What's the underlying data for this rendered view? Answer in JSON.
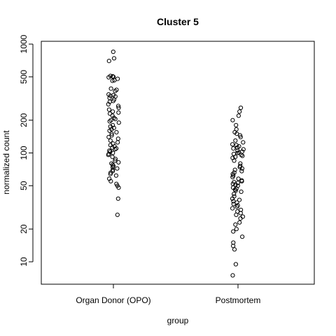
{
  "chart_data": {
    "type": "scatter",
    "title": "Cluster 5",
    "xlabel": "group",
    "ylabel": "normalized count",
    "y_scale": "log",
    "ylim": [
      7,
      1050
    ],
    "yticks": [
      10,
      20,
      50,
      100,
      200,
      500,
      1000
    ],
    "categories": [
      "Organ Donor (OPO)",
      "Postmortem"
    ],
    "grid": false,
    "legend": "none",
    "series": [
      {
        "category": "Organ Donor (OPO)",
        "values": [
          850,
          740,
          700,
          510,
          505,
          500,
          495,
          480,
          465,
          460,
          390,
          380,
          370,
          345,
          340,
          335,
          330,
          320,
          310,
          300,
          295,
          280,
          270,
          260,
          250,
          240,
          235,
          230,
          220,
          210,
          205,
          200,
          195,
          190,
          180,
          175,
          170,
          165,
          160,
          155,
          150,
          145,
          140,
          135,
          130,
          125,
          122,
          118,
          115,
          112,
          110,
          108,
          105,
          103,
          100,
          98,
          96,
          92,
          88,
          85,
          82,
          80,
          78,
          76,
          74,
          72,
          70,
          68,
          66,
          64,
          62,
          58,
          55,
          52,
          50,
          48,
          38,
          27
        ]
      },
      {
        "category": "Postmortem",
        "values": [
          260,
          240,
          220,
          200,
          180,
          165,
          155,
          150,
          145,
          140,
          130,
          125,
          120,
          118,
          115,
          112,
          110,
          108,
          105,
          103,
          101,
          100,
          98,
          96,
          94,
          92,
          90,
          85,
          80,
          76,
          74,
          72,
          70,
          68,
          66,
          64,
          62,
          60,
          58,
          56,
          55,
          54,
          53,
          52,
          51,
          50,
          48,
          47,
          46,
          45,
          44,
          42,
          40,
          38,
          37,
          36,
          35,
          34,
          33,
          32,
          31,
          30,
          29,
          28,
          27,
          26,
          25,
          23,
          22,
          20,
          19,
          17,
          15,
          14,
          13,
          9.5,
          7.5
        ]
      }
    ]
  }
}
